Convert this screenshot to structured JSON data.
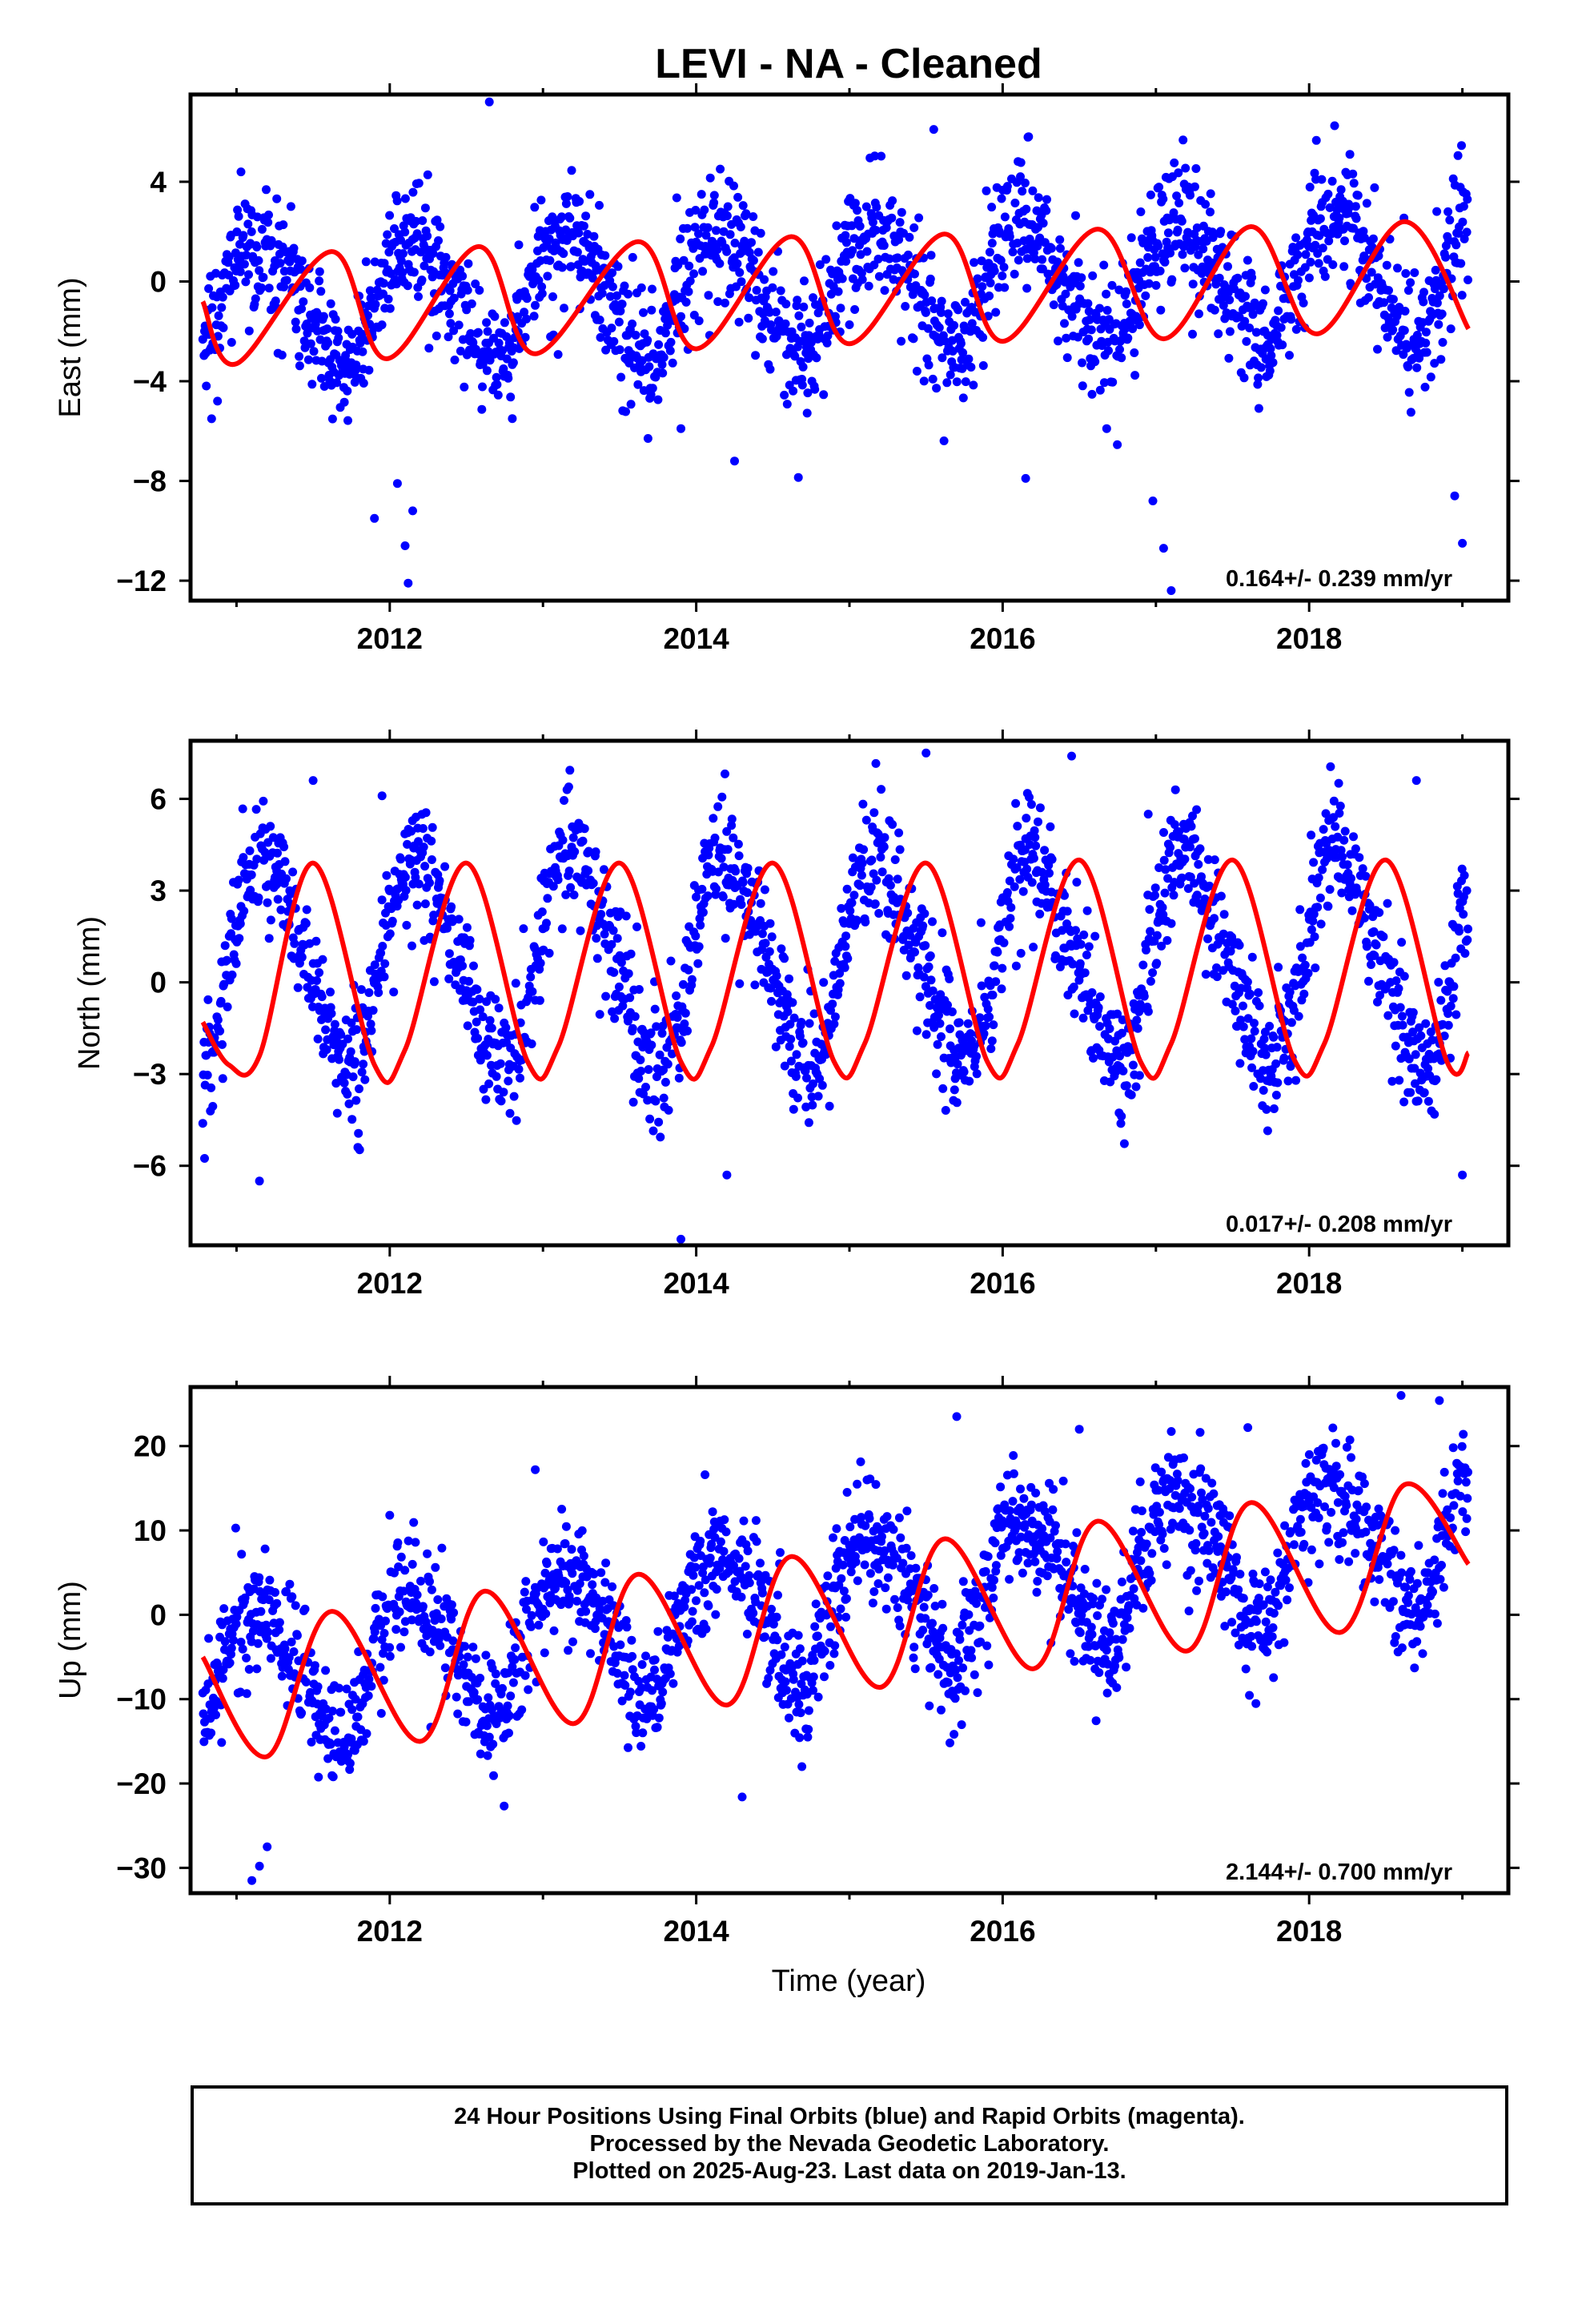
{
  "colors": {
    "final_orbits": "#0000ff",
    "model_fit": "#ff0000",
    "frame": "#000000",
    "background": "#ffffff"
  },
  "footer": {
    "line1": "24 Hour Positions Using Final Orbits (blue) and Rapid Orbits (magenta).",
    "line2": "Processed by the Nevada Geodetic Laboratory.",
    "line3": "Plotted on 2025-Aug-23. Last data on 2019-Jan-13."
  },
  "chart_data": [
    {
      "type": "scatter",
      "title": "LEVI  - NA - Cleaned",
      "ylabel": "East (mm)",
      "xlabel": "",
      "xlim": [
        2010.7,
        2019.3
      ],
      "ylim": [
        -12.8,
        7.5
      ],
      "xticks": [
        2012,
        2014,
        2016,
        2018
      ],
      "yticks": [
        -12,
        -8,
        -4,
        0,
        4
      ],
      "rate_text": "0.164+/- 0.239 mm/yr",
      "grid": false,
      "series": [
        {
          "kind": "points",
          "color": "#0000ff",
          "x_range": [
            2010.78,
            2019.04
          ],
          "model": {
            "offset": -0.9,
            "rate": 0.164,
            "annual_amp": 2.4,
            "annual_phase": 0.55,
            "semi_amp": 0.3,
            "semi_phase": 1.9,
            "noise": 1.25
          },
          "outliers": [
            [
              2011.9,
              -9.5
            ],
            [
              2012.05,
              -8.1
            ],
            [
              2012.1,
              -10.6
            ],
            [
              2012.12,
              -12.1
            ],
            [
              2012.15,
              -9.2
            ],
            [
              2012.8,
              -5.5
            ],
            [
              2013.9,
              -5.9
            ],
            [
              2014.25,
              -7.2
            ],
            [
              2016.15,
              -7.9
            ],
            [
              2016.98,
              -8.8
            ],
            [
              2017.05,
              -10.7
            ],
            [
              2017.1,
              -12.4
            ],
            [
              2018.95,
              -8.6
            ],
            [
              2019.0,
              -10.5
            ],
            [
              2012.65,
              7.2
            ],
            [
              2015.55,
              6.1
            ]
          ]
        },
        {
          "kind": "line",
          "color": "#ff0000",
          "fit_points": [
            [
              2010.78,
              -0.8
            ],
            [
              2011.0,
              -3.3
            ],
            [
              2011.62,
              1.2
            ],
            [
              2011.98,
              -3.1
            ],
            [
              2012.58,
              1.4
            ],
            [
              2012.95,
              -2.9
            ],
            [
              2013.62,
              1.6
            ],
            [
              2014.0,
              -2.7
            ],
            [
              2014.62,
              1.8
            ],
            [
              2015.0,
              -2.5
            ],
            [
              2015.62,
              1.9
            ],
            [
              2016.0,
              -2.4
            ],
            [
              2016.62,
              2.1
            ],
            [
              2017.05,
              -2.3
            ],
            [
              2017.62,
              2.2
            ],
            [
              2018.05,
              -2.1
            ],
            [
              2018.62,
              2.4
            ],
            [
              2019.04,
              -1.9
            ]
          ]
        }
      ]
    },
    {
      "type": "scatter",
      "title": "",
      "ylabel": "North (mm)",
      "xlabel": "",
      "xlim": [
        2010.7,
        2019.3
      ],
      "ylim": [
        -8.6,
        7.9
      ],
      "xticks": [
        2012,
        2014,
        2016,
        2018
      ],
      "yticks": [
        -6,
        -3,
        0,
        3,
        6
      ],
      "rate_text": "0.017+/- 0.208 mm/yr",
      "grid": false,
      "series": [
        {
          "kind": "points",
          "color": "#0000ff",
          "x_range": [
            2010.78,
            2019.04
          ],
          "model": {
            "offset": 0.7,
            "rate": 0.017,
            "annual_amp": 3.3,
            "annual_phase": 0.25,
            "semi_amp": 0.5,
            "semi_phase": 0.6,
            "noise": 1.0
          },
          "outliers": [
            [
              2011.15,
              -6.5
            ],
            [
              2011.5,
              6.6
            ],
            [
              2011.95,
              6.1
            ],
            [
              2013.9,
              -8.4
            ],
            [
              2014.2,
              -6.3
            ],
            [
              2015.5,
              7.5
            ],
            [
              2016.45,
              7.4
            ],
            [
              2016.95,
              5.5
            ],
            [
              2018.7,
              6.6
            ],
            [
              2019.0,
              -6.3
            ]
          ]
        },
        {
          "kind": "line",
          "color": "#ff0000",
          "fit_points": [
            [
              2010.78,
              -1.3
            ],
            [
              2010.95,
              -2.7
            ],
            [
              2011.15,
              -2.4
            ],
            [
              2011.5,
              3.9
            ],
            [
              2011.9,
              -2.7
            ],
            [
              2012.1,
              -2.2
            ],
            [
              2012.5,
              3.9
            ],
            [
              2012.9,
              -2.6
            ],
            [
              2013.1,
              -2.1
            ],
            [
              2013.5,
              3.9
            ],
            [
              2013.9,
              -2.6
            ],
            [
              2014.1,
              -2.1
            ],
            [
              2014.5,
              3.9
            ],
            [
              2014.9,
              -2.6
            ],
            [
              2015.1,
              -2.0
            ],
            [
              2015.5,
              3.9
            ],
            [
              2015.9,
              -2.6
            ],
            [
              2016.1,
              -2.0
            ],
            [
              2016.5,
              4.0
            ],
            [
              2016.9,
              -2.6
            ],
            [
              2017.1,
              -2.0
            ],
            [
              2017.5,
              4.0
            ],
            [
              2017.9,
              -2.5
            ],
            [
              2018.1,
              -2.0
            ],
            [
              2018.5,
              4.0
            ],
            [
              2018.9,
              -2.6
            ],
            [
              2019.04,
              -2.3
            ]
          ]
        }
      ]
    },
    {
      "type": "scatter",
      "title": "",
      "ylabel": "Up (mm)",
      "xlabel": "Time (year)",
      "xlim": [
        2010.7,
        2019.3
      ],
      "ylim": [
        -33,
        27
      ],
      "xticks": [
        2012,
        2014,
        2016,
        2018
      ],
      "yticks": [
        -30,
        -20,
        -10,
        0,
        10,
        20
      ],
      "rate_text": "2.144+/- 0.700 mm/yr",
      "grid": false,
      "series": [
        {
          "kind": "points",
          "color": "#0000ff",
          "x_range": [
            2010.78,
            2019.04
          ],
          "model": {
            "offset": -7.5,
            "rate": 2.144,
            "annual_amp": 8.0,
            "annual_phase": 0.6,
            "semi_amp": 1.5,
            "semi_phase": 2.2,
            "noise": 3.4
          },
          "outliers": [
            [
              2011.1,
              -31.5
            ],
            [
              2011.15,
              -29.8
            ],
            [
              2011.2,
              -27.5
            ],
            [
              2012.0,
              11.8
            ],
            [
              2012.95,
              17.2
            ],
            [
              2014.3,
              -21.6
            ],
            [
              2015.7,
              23.5
            ],
            [
              2016.5,
              22.0
            ],
            [
              2017.6,
              22.2
            ],
            [
              2018.6,
              26.0
            ],
            [
              2018.85,
              25.4
            ]
          ]
        },
        {
          "kind": "line",
          "color": "#ff0000",
          "fit_points": [
            [
              2010.78,
              -5.0
            ],
            [
              2011.2,
              -16.8
            ],
            [
              2011.62,
              0.4
            ],
            [
              2012.2,
              -15.0
            ],
            [
              2012.62,
              2.8
            ],
            [
              2013.2,
              -12.9
            ],
            [
              2013.62,
              4.8
            ],
            [
              2014.2,
              -10.7
            ],
            [
              2014.62,
              6.9
            ],
            [
              2015.2,
              -8.6
            ],
            [
              2015.62,
              9.0
            ],
            [
              2016.2,
              -6.4
            ],
            [
              2016.62,
              11.1
            ],
            [
              2017.2,
              -4.3
            ],
            [
              2017.62,
              13.3
            ],
            [
              2018.2,
              -2.1
            ],
            [
              2018.62,
              15.4
            ],
            [
              2019.04,
              6.0
            ]
          ]
        }
      ]
    }
  ]
}
